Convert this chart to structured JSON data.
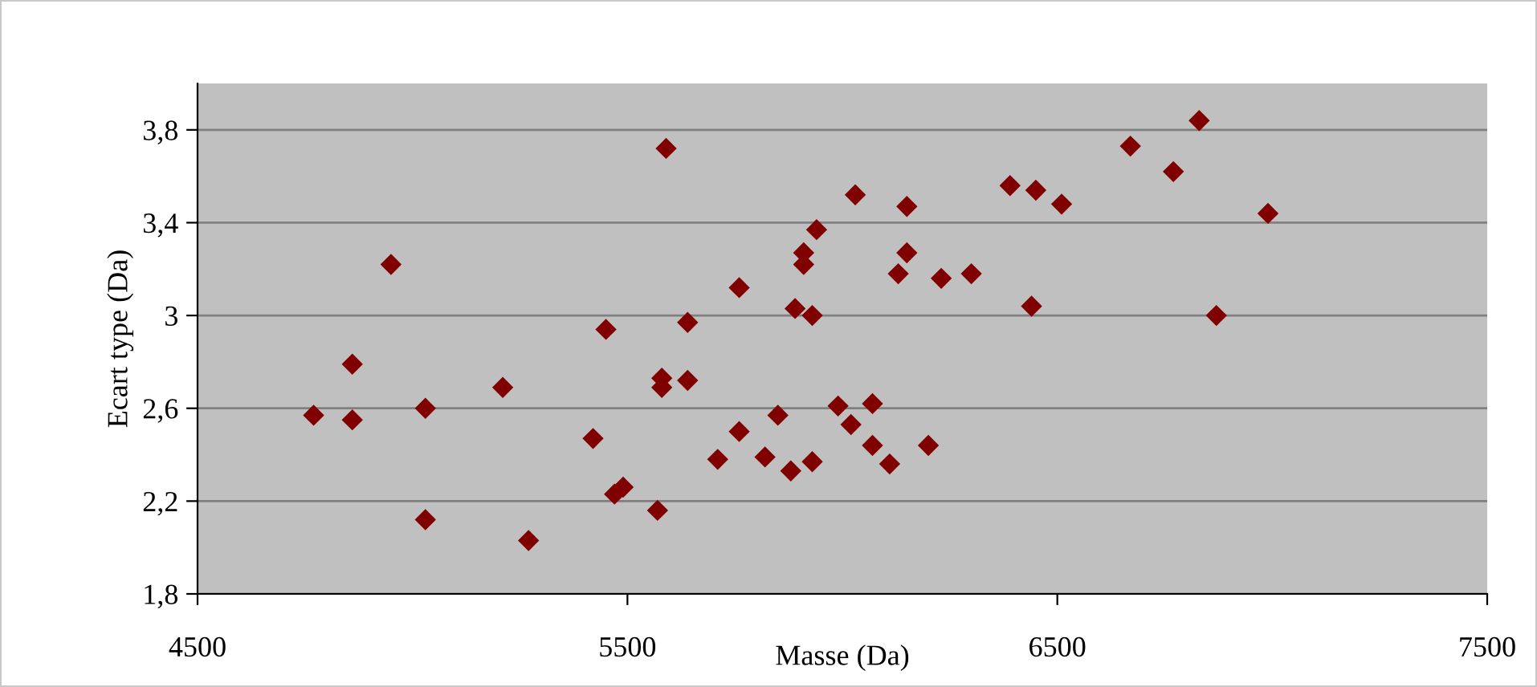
{
  "chart_data": {
    "type": "scatter",
    "xlabel": "Masse (Da)",
    "ylabel": "Ecart type (Da)",
    "x": [
      4770,
      4860,
      4860,
      4950,
      5030,
      5030,
      5210,
      5270,
      5420,
      5450,
      5470,
      5490,
      5570,
      5580,
      5580,
      5590,
      5640,
      5640,
      5710,
      5760,
      5760,
      5820,
      5850,
      5880,
      5890,
      5910,
      5910,
      5930,
      5930,
      5940,
      5990,
      6020,
      6030,
      6070,
      6070,
      6110,
      6130,
      6150,
      6150,
      6200,
      6230,
      6300,
      6390,
      6440,
      6450,
      6510,
      6670,
      6770,
      6830,
      6870,
      6990
    ],
    "values": [
      2.57,
      2.79,
      2.55,
      3.22,
      2.6,
      2.12,
      2.69,
      2.03,
      2.47,
      2.94,
      2.23,
      2.26,
      2.16,
      2.69,
      2.73,
      3.72,
      2.72,
      2.97,
      2.38,
      2.5,
      3.12,
      2.39,
      2.57,
      2.33,
      3.03,
      3.22,
      3.27,
      2.37,
      3.0,
      3.37,
      2.61,
      2.53,
      3.52,
      2.62,
      2.44,
      2.36,
      3.18,
      3.47,
      3.27,
      2.44,
      3.16,
      3.18,
      3.56,
      3.04,
      3.54,
      3.48,
      3.73,
      3.62,
      3.84,
      3.0,
      3.44
    ],
    "color": "#800000",
    "marker": "diamond",
    "xlim": [
      4500,
      7500
    ],
    "xticks": [
      4500,
      5500,
      6500,
      7500
    ],
    "ylim": [
      1.8,
      4.0
    ],
    "yticks": [
      {
        "value": 1.8,
        "label": "1,8"
      },
      {
        "value": 2.2,
        "label": "2,2"
      },
      {
        "value": 2.6,
        "label": "2,6"
      },
      {
        "value": 3,
        "label": "3"
      },
      {
        "value": 3.4,
        "label": "3,4"
      },
      {
        "value": 3.8,
        "label": "3,8"
      }
    ],
    "grid": "y",
    "legend": false
  }
}
